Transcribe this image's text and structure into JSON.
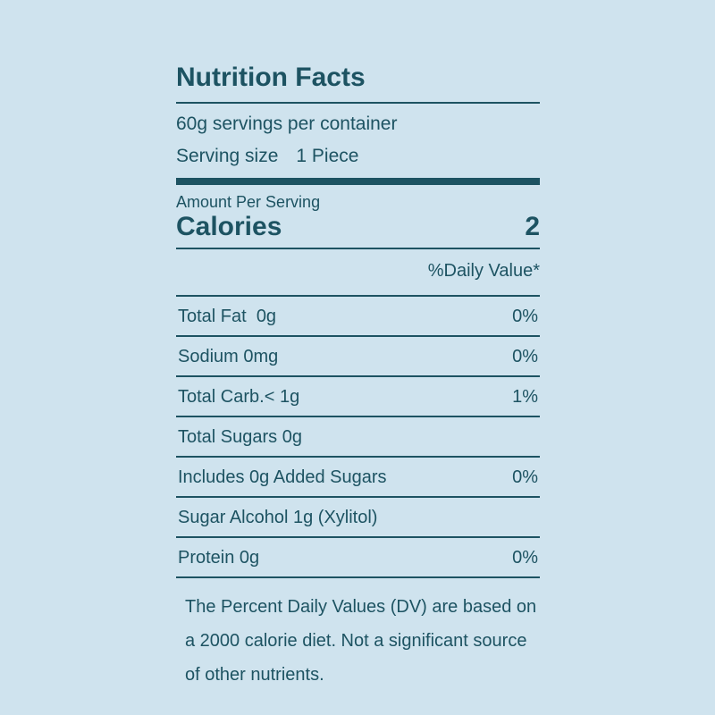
{
  "label": {
    "title": "Nutrition Facts",
    "servings_per_container": "60g servings per container",
    "serving_size_label": "Serving size",
    "serving_size_value": "1 Piece",
    "amount_per_serving": "Amount Per Serving",
    "calories_label": "Calories",
    "calories_value": "2",
    "daily_value_header": "%Daily Value*",
    "rows": [
      {
        "name": "Total Fat  0g",
        "dv": "0%"
      },
      {
        "name": "Sodium 0mg",
        "dv": "0%"
      },
      {
        "name": "Total Carb.< 1g",
        "dv": "1%"
      },
      {
        "name": "Total Sugars 0g",
        "dv": ""
      },
      {
        "name": "Includes 0g Added Sugars",
        "dv": "0%"
      },
      {
        "name": "Sugar Alcohol 1g (Xylitol)",
        "dv": ""
      },
      {
        "name": "Protein 0g",
        "dv": "0%"
      }
    ],
    "footnote": "The Percent Daily Values (DV) are based on a 2000 calorie diet. Not a significant source of other nutrients."
  },
  "colors": {
    "background": "#cfe3ee",
    "text": "#1d5362"
  }
}
